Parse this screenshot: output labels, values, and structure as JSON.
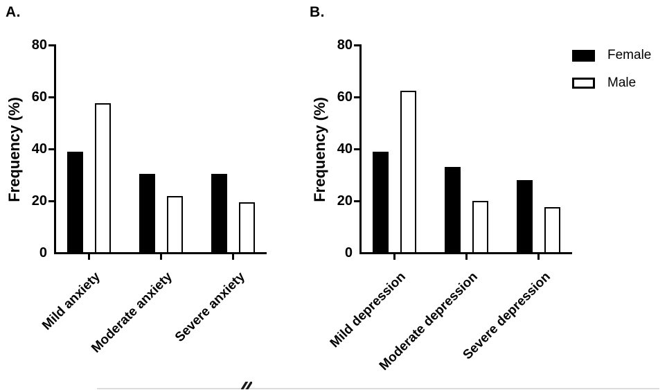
{
  "figure": {
    "background": "#ffffff",
    "panels": [
      {
        "letter": "A."
      },
      {
        "letter": "B."
      }
    ]
  },
  "legend": {
    "position": "top-right",
    "items": [
      {
        "label": "Female",
        "fill": "#000000"
      },
      {
        "label": "Male",
        "fill": "#ffffff"
      }
    ]
  },
  "chart_data": [
    {
      "type": "bar",
      "panel": "A.",
      "title": "",
      "xlabel": "",
      "ylabel": "Frequency (%)",
      "ylim": [
        0,
        80
      ],
      "yticks": [
        0,
        20,
        40,
        60,
        80
      ],
      "grid": false,
      "legend_position": "top-right-outside",
      "bar_style": "grouped, black filled vs white outlined",
      "categories": [
        "Mild anxiety",
        "Moderate anxiety",
        "Severe anxiety"
      ],
      "series": [
        {
          "name": "Female",
          "fill": "#000000",
          "values": [
            39,
            30.5,
            30.5
          ]
        },
        {
          "name": "Male",
          "fill": "#ffffff",
          "values": [
            57.5,
            22,
            19.5
          ]
        }
      ]
    },
    {
      "type": "bar",
      "panel": "B.",
      "title": "",
      "xlabel": "",
      "ylabel": "Frequency (%)",
      "ylim": [
        0,
        80
      ],
      "yticks": [
        0,
        20,
        40,
        60,
        80
      ],
      "grid": false,
      "legend_position": "top-right-outside",
      "bar_style": "grouped, black filled vs white outlined",
      "categories": [
        "Mild depression",
        "Moderate depression",
        "Severe depression"
      ],
      "series": [
        {
          "name": "Female",
          "fill": "#000000",
          "values": [
            39,
            33,
            28
          ]
        },
        {
          "name": "Male",
          "fill": "#ffffff",
          "values": [
            62.5,
            20,
            17.5
          ]
        }
      ]
    }
  ]
}
